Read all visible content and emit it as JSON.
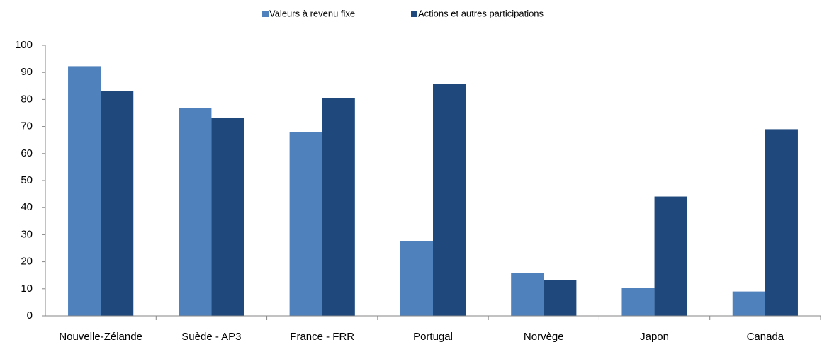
{
  "chart_data": {
    "type": "bar",
    "categories": [
      "Nouvelle-Zélande",
      "Suède - AP3",
      "France - FRR",
      "Portugal",
      "Norvège",
      "Japon",
      "Canada"
    ],
    "series": [
      {
        "name": "Valeurs à revenu fixe",
        "color": "#4f81bd",
        "values": [
          92.3,
          76.7,
          68,
          27.6,
          15.9,
          10.3,
          9
        ]
      },
      {
        "name": "Actions et autres participations",
        "color": "#1f497d",
        "values": [
          83.2,
          73.3,
          80.6,
          85.8,
          13.3,
          44.1,
          69
        ]
      }
    ],
    "ylim": [
      0,
      100
    ],
    "yticks": [
      0,
      10,
      20,
      30,
      40,
      50,
      60,
      70,
      80,
      90,
      100
    ],
    "grid": false,
    "legend": "top"
  }
}
